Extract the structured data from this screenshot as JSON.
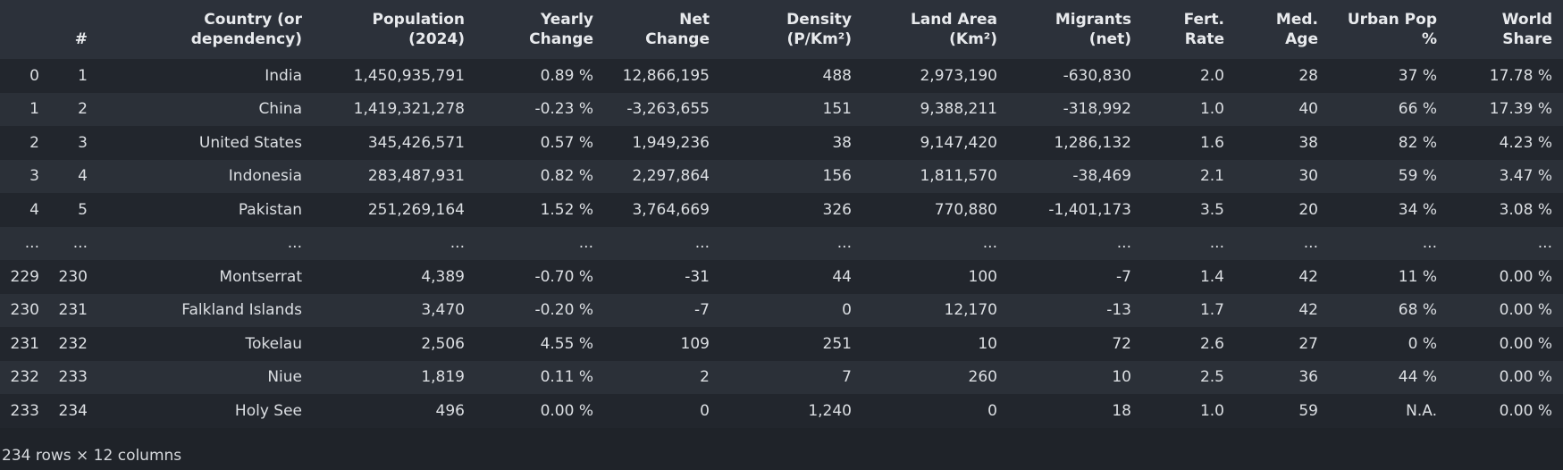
{
  "table": {
    "headers": [
      {
        "lines": [
          "",
          ""
        ]
      },
      {
        "lines": [
          "",
          "#"
        ]
      },
      {
        "lines": [
          "Country (or",
          "dependency)"
        ]
      },
      {
        "lines": [
          "Population",
          "(2024)"
        ]
      },
      {
        "lines": [
          "Yearly",
          "Change"
        ]
      },
      {
        "lines": [
          "Net",
          "Change"
        ]
      },
      {
        "lines": [
          "Density",
          "(P/Km²)"
        ]
      },
      {
        "lines": [
          "Land Area",
          "(Km²)"
        ]
      },
      {
        "lines": [
          "Migrants",
          "(net)"
        ]
      },
      {
        "lines": [
          "Fert.",
          "Rate"
        ]
      },
      {
        "lines": [
          "Med.",
          "Age"
        ]
      },
      {
        "lines": [
          "Urban Pop",
          "%"
        ]
      },
      {
        "lines": [
          "World",
          "Share"
        ]
      }
    ],
    "rows": [
      [
        "0",
        "1",
        "India",
        "1,450,935,791",
        "0.89 %",
        "12,866,195",
        "488",
        "2,973,190",
        "-630,830",
        "2.0",
        "28",
        "37 %",
        "17.78 %"
      ],
      [
        "1",
        "2",
        "China",
        "1,419,321,278",
        "-0.23 %",
        "-3,263,655",
        "151",
        "9,388,211",
        "-318,992",
        "1.0",
        "40",
        "66 %",
        "17.39 %"
      ],
      [
        "2",
        "3",
        "United States",
        "345,426,571",
        "0.57 %",
        "1,949,236",
        "38",
        "9,147,420",
        "1,286,132",
        "1.6",
        "38",
        "82 %",
        "4.23 %"
      ],
      [
        "3",
        "4",
        "Indonesia",
        "283,487,931",
        "0.82 %",
        "2,297,864",
        "156",
        "1,811,570",
        "-38,469",
        "2.1",
        "30",
        "59 %",
        "3.47 %"
      ],
      [
        "4",
        "5",
        "Pakistan",
        "251,269,164",
        "1.52 %",
        "3,764,669",
        "326",
        "770,880",
        "-1,401,173",
        "3.5",
        "20",
        "34 %",
        "3.08 %"
      ],
      [
        "...",
        "...",
        "...",
        "...",
        "...",
        "...",
        "...",
        "...",
        "...",
        "...",
        "...",
        "...",
        "..."
      ],
      [
        "229",
        "230",
        "Montserrat",
        "4,389",
        "-0.70 %",
        "-31",
        "44",
        "100",
        "-7",
        "1.4",
        "42",
        "11 %",
        "0.00 %"
      ],
      [
        "230",
        "231",
        "Falkland Islands",
        "3,470",
        "-0.20 %",
        "-7",
        "0",
        "12,170",
        "-13",
        "1.7",
        "42",
        "68 %",
        "0.00 %"
      ],
      [
        "231",
        "232",
        "Tokelau",
        "2,506",
        "4.55 %",
        "109",
        "251",
        "10",
        "72",
        "2.6",
        "27",
        "0 %",
        "0.00 %"
      ],
      [
        "232",
        "233",
        "Niue",
        "1,819",
        "0.11 %",
        "2",
        "7",
        "260",
        "10",
        "2.5",
        "36",
        "44 %",
        "0.00 %"
      ],
      [
        "233",
        "234",
        "Holy See",
        "496",
        "0.00 %",
        "0",
        "1,240",
        "0",
        "18",
        "1.0",
        "59",
        "N.A.",
        "0.00 %"
      ]
    ]
  },
  "summary": "234 rows × 12 columns",
  "colors": {
    "background": "#1f2329",
    "header_bg": "#2c313a",
    "row_odd": "#22262d",
    "row_even": "#2b3038",
    "text": "#dcdfe3"
  }
}
